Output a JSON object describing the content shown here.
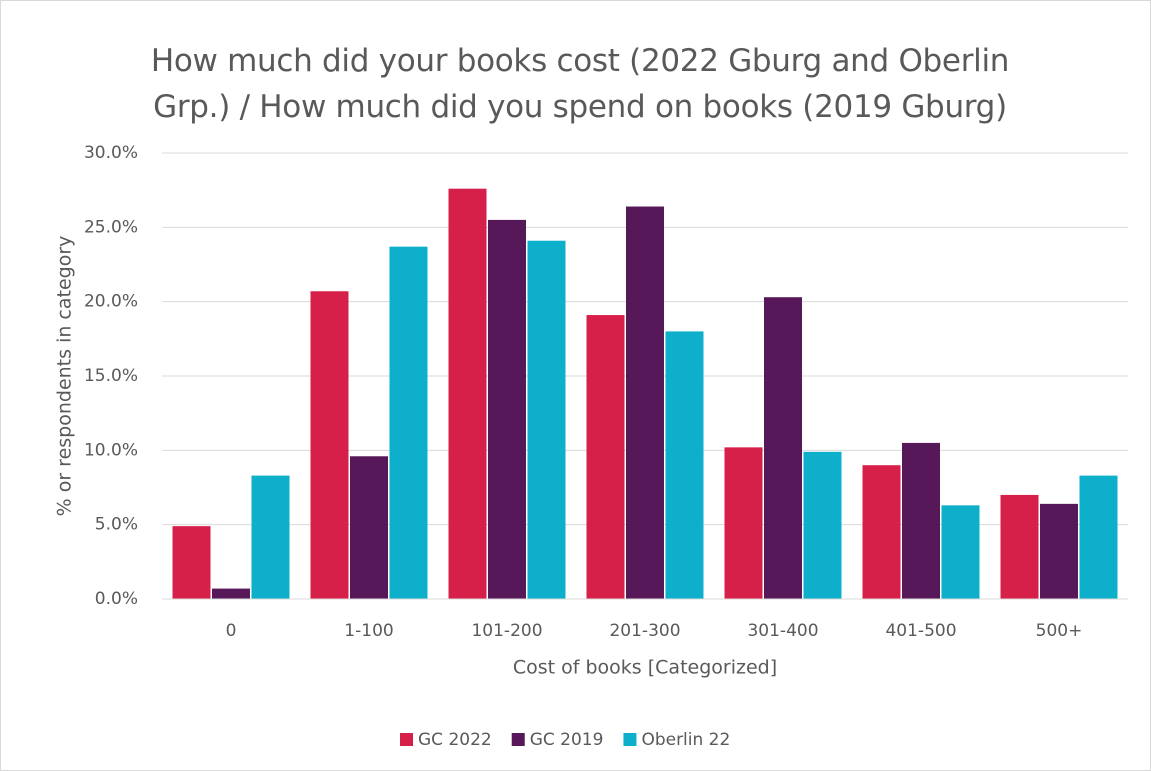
{
  "chart_data": {
    "type": "bar",
    "title": "How much did your books cost (2022 Gburg and Oberlin Grp.) / How much did you spend on books (2019 Gburg)",
    "x_label": "Cost of books [Categorized]",
    "y_label": "% or respondents in category",
    "categories": [
      "0",
      "1-100",
      "101-200",
      "201-300",
      "301-400",
      "401-500",
      "500+"
    ],
    "series": [
      {
        "name": "GC 2022",
        "color": "#d6204a",
        "values": [
          4.9,
          20.7,
          27.6,
          19.1,
          10.2,
          9.0,
          7.0
        ]
      },
      {
        "name": "GC 2019",
        "color": "#561858",
        "values": [
          0.7,
          9.6,
          25.5,
          26.4,
          20.3,
          10.5,
          6.4
        ]
      },
      {
        "name": "Oberlin 22",
        "color": "#0eafcb",
        "values": [
          8.3,
          23.7,
          24.1,
          18.0,
          9.9,
          6.3,
          8.3
        ]
      }
    ],
    "ylim": [
      0,
      30
    ],
    "yticks": [
      {
        "value": 0,
        "label": "0.0%"
      },
      {
        "value": 5,
        "label": "5.0%"
      },
      {
        "value": 10,
        "label": "10.0%"
      },
      {
        "value": 15,
        "label": "15.0%"
      },
      {
        "value": 20,
        "label": "20.0%"
      },
      {
        "value": 25,
        "label": "25.0%"
      },
      {
        "value": 30,
        "label": "30.0%"
      }
    ],
    "grid": true,
    "legend": "bottom"
  }
}
